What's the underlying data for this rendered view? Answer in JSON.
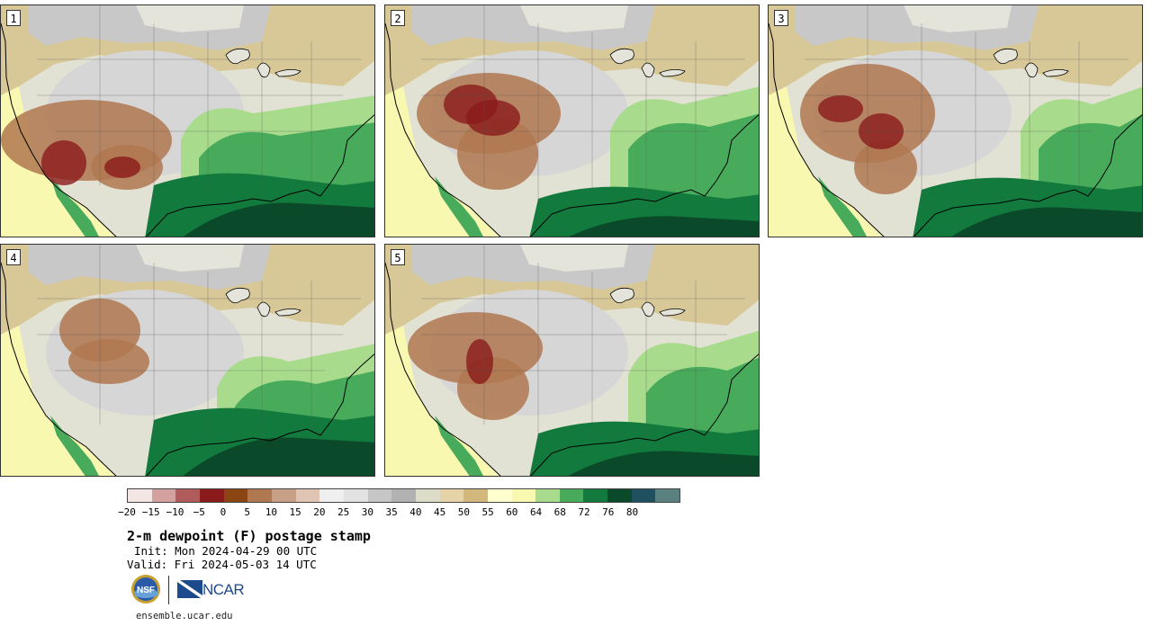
{
  "panels": [
    {
      "number": "1",
      "profile": "p1"
    },
    {
      "number": "2",
      "profile": "p2"
    },
    {
      "number": "3",
      "profile": "p3"
    },
    {
      "number": "4",
      "profile": "p4"
    },
    {
      "number": "5",
      "profile": "p5"
    }
  ],
  "colorbar": {
    "colors": [
      "#f5e6e6",
      "#d4a0a0",
      "#b05c5c",
      "#8b1a1a",
      "#8b4513",
      "#b07850",
      "#c8a088",
      "#e0c4b4",
      "#efefef",
      "#e2e2e2",
      "#c6c6c6",
      "#b2b2b2",
      "#dcdcc8",
      "#e6d4a8",
      "#d2b87a",
      "#ffffd0",
      "#f8f8b0",
      "#a8dc8c",
      "#48ab5c",
      "#127a3c",
      "#0a4a2a",
      "#1e5060",
      "#5a8080"
    ],
    "tick_labels": [
      "−20",
      "−15",
      "−10",
      "−5",
      "0",
      "5",
      "10",
      "15",
      "20",
      "25",
      "30",
      "35",
      "40",
      "45",
      "50",
      "55",
      "60",
      "64",
      "68",
      "72",
      "76",
      "80"
    ]
  },
  "title": "2-m dewpoint (F) postage stamp",
  "init": "Init: Mon 2024-04-29 00 UTC",
  "valid": "Valid: Fri 2024-05-03 14 UTC",
  "logos": {
    "nsf": "NSF",
    "ncar": "NCAR"
  },
  "site": "ensemble.ucar.edu",
  "icons": [
    "nsf-logo-icon",
    "ncar-logo-icon"
  ]
}
